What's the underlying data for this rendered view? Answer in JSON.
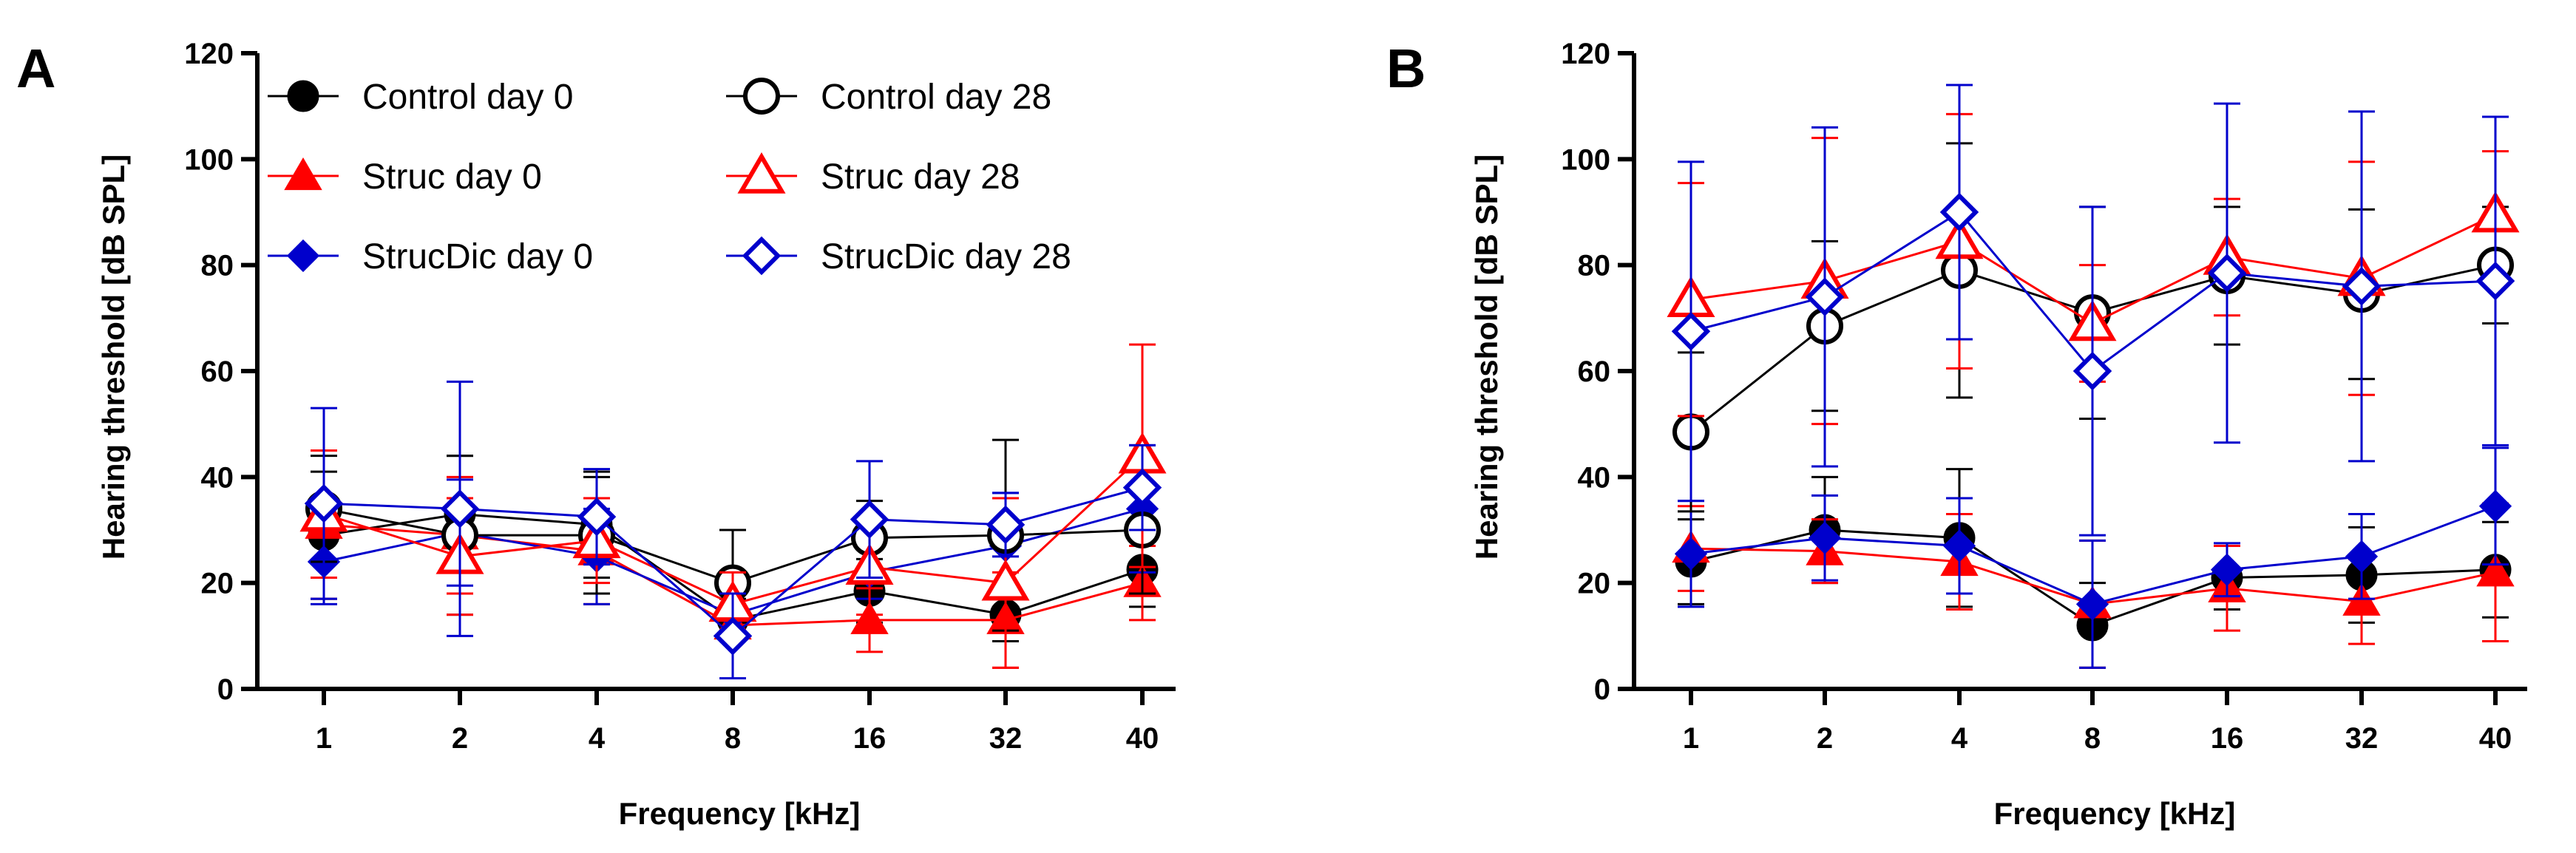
{
  "chart_data": [
    {
      "panel": "A",
      "type": "line",
      "xlabel": "Frequency [kHz]",
      "ylabel": "Hearing threshold [dB SPL]",
      "ylim": [
        0,
        120
      ],
      "yticks": [
        0,
        20,
        40,
        60,
        80,
        100,
        120
      ],
      "categories": [
        "1",
        "2",
        "4",
        "8",
        "16",
        "32",
        "40"
      ],
      "legend_placement": "top-left",
      "grid": false,
      "series": [
        {
          "name": "Control day 0",
          "color": "#000000",
          "marker": "circle",
          "fill": true,
          "values": [
            29,
            33,
            31,
            13,
            18.5,
            14,
            22.5
          ],
          "error": [
            12,
            11,
            10,
            4,
            6,
            5,
            7
          ]
        },
        {
          "name": "Struc day 0",
          "color": "#ff0000",
          "marker": "triangle",
          "fill": true,
          "values": [
            31,
            29,
            26,
            12,
            13,
            13,
            20
          ],
          "error": [
            14,
            11,
            10,
            3,
            6,
            9,
            7
          ]
        },
        {
          "name": "StrucDic day 0",
          "color": "#0000cc",
          "marker": "diamond",
          "fill": true,
          "values": [
            24,
            29.5,
            25,
            14,
            22,
            27,
            34
          ],
          "error": [
            8,
            10,
            9,
            5,
            5,
            10,
            12
          ]
        },
        {
          "name": "Control day 28",
          "color": "#000000",
          "marker": "circle",
          "fill": false,
          "values": [
            34,
            29,
            29,
            20,
            28.5,
            29,
            30
          ],
          "error": [
            10,
            15,
            11,
            10,
            7,
            18,
            12
          ]
        },
        {
          "name": "Struc day 28",
          "color": "#ff0000",
          "marker": "triangle",
          "fill": false,
          "values": [
            33,
            25,
            28,
            16,
            23,
            20,
            44
          ],
          "error": [
            12,
            11,
            8,
            6,
            9,
            16,
            21
          ]
        },
        {
          "name": "StrucDic day 28",
          "color": "#0000cc",
          "marker": "diamond",
          "fill": false,
          "values": [
            35,
            34,
            32.5,
            10,
            32,
            31,
            38
          ],
          "error": [
            18,
            24,
            9,
            8,
            11,
            6,
            8
          ]
        }
      ]
    },
    {
      "panel": "B",
      "type": "line",
      "xlabel": "Frequency [kHz]",
      "ylabel": "Hearing threshold [dB SPL]",
      "ylim": [
        0,
        120
      ],
      "yticks": [
        0,
        20,
        40,
        60,
        80,
        100,
        120
      ],
      "categories": [
        "1",
        "2",
        "4",
        "8",
        "16",
        "32",
        "40"
      ],
      "grid": false,
      "series": [
        {
          "name": "Control day 0",
          "color": "#000000",
          "marker": "circle",
          "fill": true,
          "values": [
            24,
            30,
            28.5,
            12,
            21,
            21.5,
            22.5
          ],
          "error": [
            8,
            10,
            13,
            8,
            6,
            9,
            9
          ]
        },
        {
          "name": "Struc day 0",
          "color": "#ff0000",
          "marker": "triangle",
          "fill": true,
          "values": [
            26.5,
            26,
            24,
            16,
            19,
            16.5,
            22
          ],
          "error": [
            8,
            6,
            9,
            12,
            8,
            8,
            13
          ]
        },
        {
          "name": "StrucDic day 0",
          "color": "#0000cc",
          "marker": "diamond",
          "fill": true,
          "values": [
            25.5,
            28.5,
            27,
            16,
            22.5,
            25,
            34.5
          ],
          "error": [
            10,
            8,
            9,
            12,
            5,
            8,
            11
          ]
        },
        {
          "name": "Control day 28",
          "color": "#000000",
          "marker": "circle",
          "fill": false,
          "values": [
            48.5,
            68.5,
            79,
            71,
            78,
            74.5,
            80
          ],
          "error": [
            15,
            16,
            24,
            20,
            13,
            16,
            11
          ]
        },
        {
          "name": "Struc day 28",
          "color": "#ff0000",
          "marker": "triangle",
          "fill": false,
          "values": [
            73.5,
            77,
            84.5,
            69,
            81.5,
            77.5,
            89.5
          ],
          "error": [
            22,
            27,
            24,
            11,
            11,
            22,
            12
          ]
        },
        {
          "name": "StrucDic day 28",
          "color": "#0000cc",
          "marker": "diamond",
          "fill": false,
          "values": [
            67.5,
            74,
            90,
            60,
            78.5,
            76,
            77
          ],
          "error": [
            32,
            32,
            24,
            31,
            32,
            33,
            31
          ]
        }
      ]
    }
  ]
}
